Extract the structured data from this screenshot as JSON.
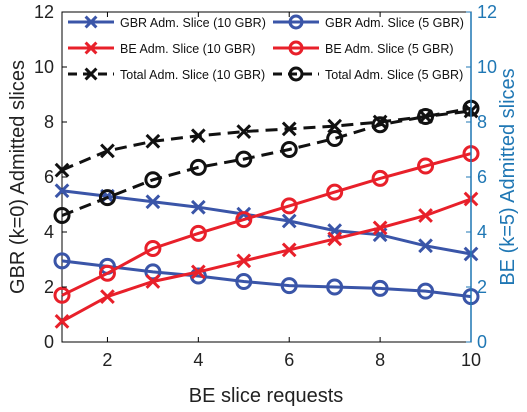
{
  "chart_data": {
    "type": "line",
    "xlabel": "BE slice requests",
    "ylabel_left": "GBR (k=0) Admitted slices",
    "ylabel_right": "BE (k=5) Admitted slices",
    "x": [
      1,
      2,
      3,
      4,
      5,
      6,
      7,
      8,
      9,
      10
    ],
    "xlim": [
      1,
      10
    ],
    "ylim_left": [
      0,
      12
    ],
    "ylim_right": [
      0,
      12
    ],
    "x_ticks": [
      "2",
      "4",
      "6",
      "8",
      "10"
    ],
    "y_ticks_left": [
      "0",
      "2",
      "4",
      "6",
      "8",
      "10",
      "12"
    ],
    "y_ticks_right": [
      "0",
      "2",
      "4",
      "6",
      "8",
      "10",
      "12"
    ],
    "grid": false,
    "legend_position": "top",
    "colors": {
      "gbr": "#3a55a8",
      "be": "#e8202a",
      "total": "#111111",
      "right_axis": "#1f77b4"
    },
    "series": [
      {
        "name": "GBR Adm. Slice (10 GBR)",
        "color": "#3a55a8",
        "marker": "x",
        "dash": false,
        "values": [
          5.5,
          5.3,
          5.1,
          4.9,
          4.65,
          4.4,
          4.05,
          3.9,
          3.5,
          3.2
        ]
      },
      {
        "name": "GBR Adm. Slice (5 GBR)",
        "color": "#3a55a8",
        "marker": "o",
        "dash": false,
        "values": [
          2.95,
          2.75,
          2.55,
          2.4,
          2.2,
          2.05,
          2.0,
          1.95,
          1.85,
          1.65
        ]
      },
      {
        "name": "BE Adm. Slice (10 GBR)",
        "color": "#e8202a",
        "marker": "x",
        "dash": false,
        "values": [
          0.75,
          1.65,
          2.2,
          2.55,
          2.95,
          3.35,
          3.75,
          4.15,
          4.6,
          5.2
        ]
      },
      {
        "name": "BE Adm. Slice (5 GBR)",
        "color": "#e8202a",
        "marker": "o",
        "dash": false,
        "values": [
          1.7,
          2.5,
          3.4,
          3.95,
          4.45,
          4.95,
          5.45,
          5.95,
          6.4,
          6.85
        ]
      },
      {
        "name": "Total Adm. Slice (10 GBR)",
        "color": "#111111",
        "marker": "x",
        "dash": true,
        "values": [
          6.25,
          6.95,
          7.3,
          7.5,
          7.65,
          7.75,
          7.85,
          8.0,
          8.2,
          8.4
        ]
      },
      {
        "name": "Total Adm. Slice (5 GBR)",
        "color": "#111111",
        "marker": "o",
        "dash": true,
        "values": [
          4.6,
          5.25,
          5.9,
          6.35,
          6.65,
          7.0,
          7.4,
          7.9,
          8.2,
          8.5
        ]
      }
    ]
  }
}
